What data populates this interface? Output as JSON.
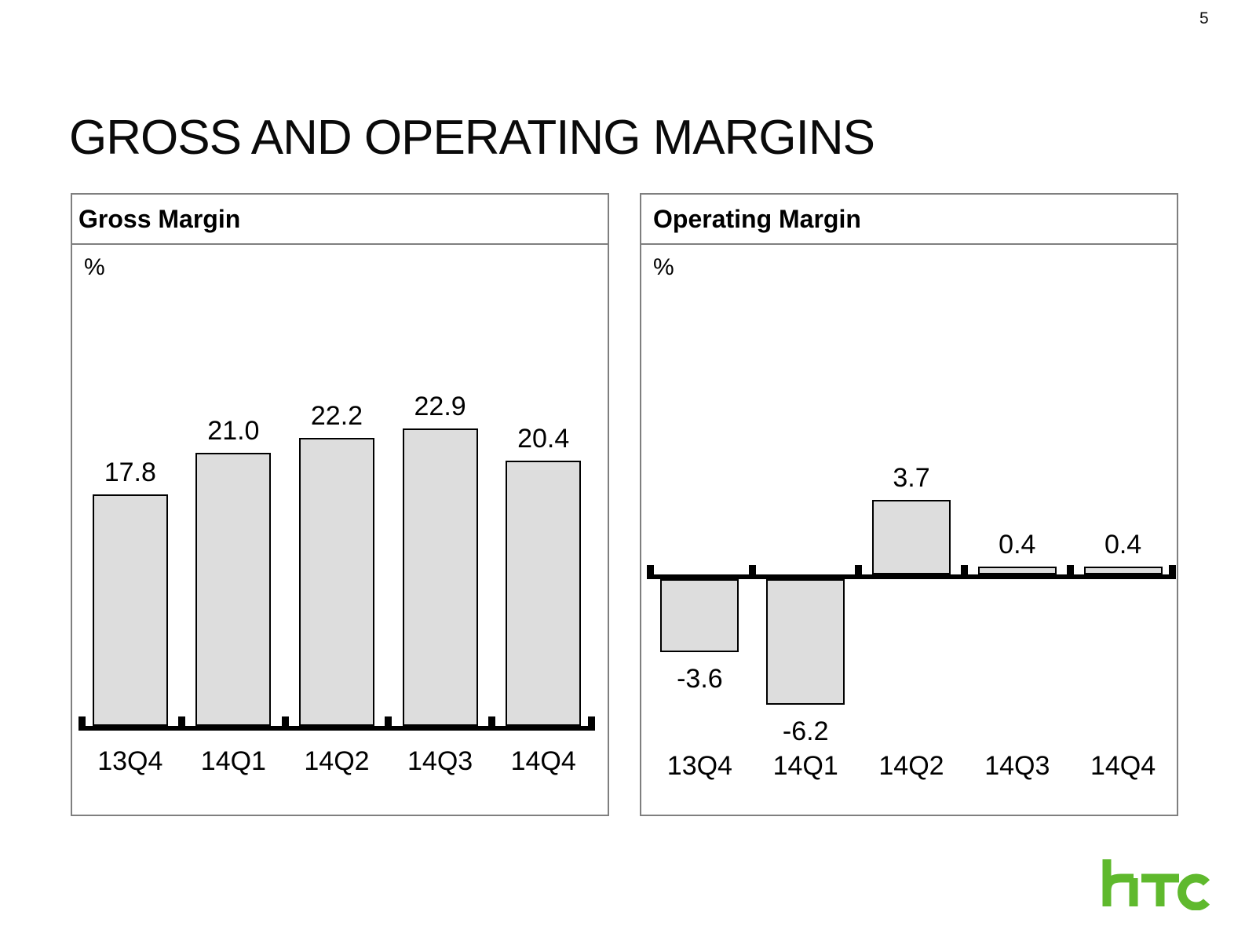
{
  "page": {
    "number": "5",
    "title": "GROSS AND OPERATING MARGINS"
  },
  "logo": {
    "name": "htc",
    "color": "#5FB92D"
  },
  "chart_data": [
    {
      "type": "bar",
      "title": "Gross Margin",
      "unit_label": "%",
      "categories": [
        "13Q4",
        "14Q1",
        "14Q2",
        "14Q3",
        "14Q4"
      ],
      "values": [
        17.8,
        21.0,
        22.2,
        22.9,
        20.4
      ],
      "value_labels": [
        "17.8",
        "21.0",
        "22.2",
        "22.9",
        "20.4"
      ],
      "ylabel": "%",
      "xlabel": "",
      "ylim": [
        0,
        25
      ],
      "grid": false,
      "legend": "none",
      "bar_color": "#DDDDDD",
      "bar_border_color": "#000000"
    },
    {
      "type": "bar",
      "title": "Operating Margin",
      "unit_label": "%",
      "categories": [
        "13Q4",
        "14Q1",
        "14Q2",
        "14Q3",
        "14Q4"
      ],
      "values": [
        -3.6,
        -6.2,
        3.7,
        0.4,
        0.4
      ],
      "value_labels": [
        "-3.6",
        "-6.2",
        "3.7",
        "0.4",
        "0.4"
      ],
      "ylabel": "%",
      "xlabel": "",
      "ylim": [
        -8,
        16
      ],
      "grid": false,
      "legend": "none",
      "bar_color": "#DDDDDD",
      "bar_border_color": "#000000"
    }
  ]
}
